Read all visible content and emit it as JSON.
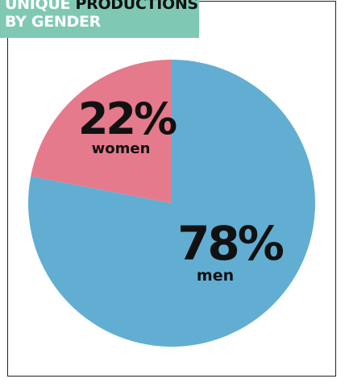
{
  "title": {
    "line1_accent": "UNIQUE",
    "line1_rest": "PRODUCTIONS",
    "line2": "BY GENDER"
  },
  "colors": {
    "title_bg": "#7fc9b4",
    "men": "#62aed3",
    "women": "#e57a8c"
  },
  "chart_data": {
    "type": "pie",
    "title": "UNIQUE PRODUCTIONS BY GENDER",
    "slices": [
      {
        "label": "men",
        "value": 78,
        "display": "78%",
        "color": "#62aed3"
      },
      {
        "label": "women",
        "value": 22,
        "display": "22%",
        "color": "#e57a8c"
      }
    ]
  }
}
